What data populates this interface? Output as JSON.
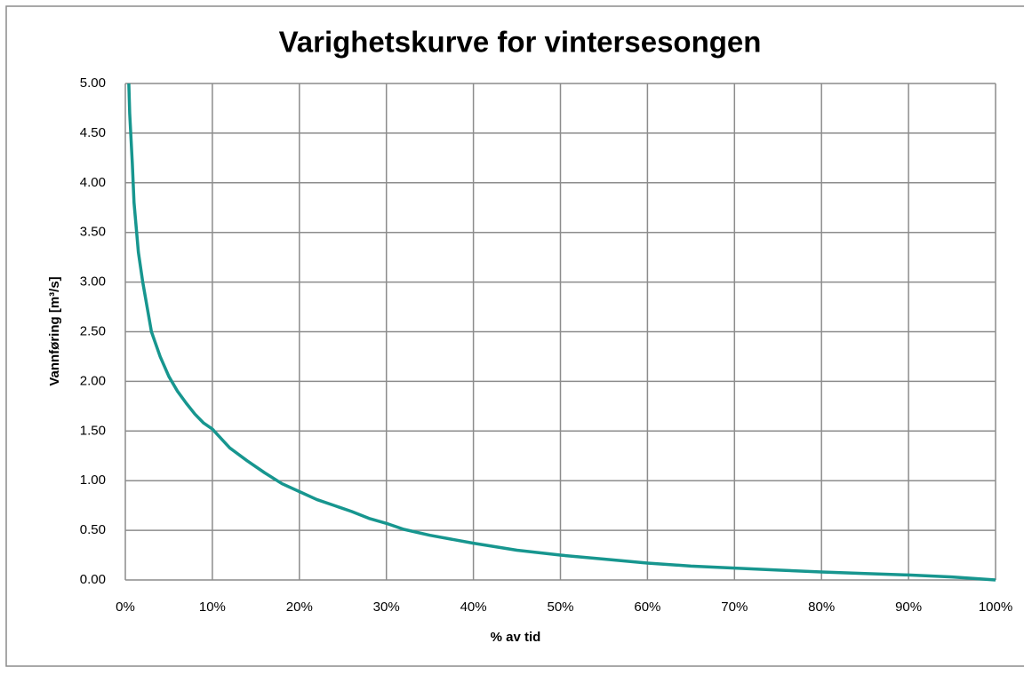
{
  "chart_data": {
    "type": "line",
    "title": "Varighetskurve for vintersesongen",
    "x_label": "% av tid",
    "y_label": "Vannføring [m³/s]",
    "x": [
      0.4,
      0.5,
      0.8,
      1,
      1.5,
      2,
      2.5,
      3,
      4,
      5,
      6,
      7,
      8,
      9,
      10,
      12,
      14,
      16,
      18,
      20,
      22,
      24,
      26,
      28,
      30,
      32,
      35,
      40,
      45,
      50,
      55,
      60,
      65,
      70,
      75,
      80,
      85,
      90,
      95,
      100
    ],
    "series": [
      {
        "name": "Vannføring",
        "color": "#17968f",
        "values": [
          5.0,
          4.7,
          4.2,
          3.8,
          3.3,
          3.0,
          2.75,
          2.5,
          2.25,
          2.05,
          1.9,
          1.78,
          1.67,
          1.58,
          1.52,
          1.33,
          1.2,
          1.08,
          0.97,
          0.89,
          0.81,
          0.75,
          0.69,
          0.62,
          0.57,
          0.51,
          0.45,
          0.37,
          0.3,
          0.25,
          0.21,
          0.17,
          0.14,
          0.12,
          0.1,
          0.08,
          0.065,
          0.05,
          0.03,
          0.0
        ]
      }
    ],
    "xlim": [
      0,
      100
    ],
    "xticks": [
      {
        "value": 0,
        "label": "0%"
      },
      {
        "value": 10,
        "label": "10%"
      },
      {
        "value": 20,
        "label": "20%"
      },
      {
        "value": 30,
        "label": "30%"
      },
      {
        "value": 40,
        "label": "40%"
      },
      {
        "value": 50,
        "label": "50%"
      },
      {
        "value": 60,
        "label": "60%"
      },
      {
        "value": 70,
        "label": "70%"
      },
      {
        "value": 80,
        "label": "80%"
      },
      {
        "value": 90,
        "label": "90%"
      },
      {
        "value": 100,
        "label": "100%"
      }
    ],
    "ylim": [
      0,
      5
    ],
    "yticks": [
      {
        "value": 0,
        "label": "0.00"
      },
      {
        "value": 0.5,
        "label": "0.50"
      },
      {
        "value": 1,
        "label": "1.00"
      },
      {
        "value": 1.5,
        "label": "1.50"
      },
      {
        "value": 2,
        "label": "2.00"
      },
      {
        "value": 2.5,
        "label": "2.50"
      },
      {
        "value": 3,
        "label": "3.00"
      },
      {
        "value": 3.5,
        "label": "3.50"
      },
      {
        "value": 4,
        "label": "4.00"
      },
      {
        "value": 4.5,
        "label": "4.50"
      },
      {
        "value": 5,
        "label": "5.00"
      }
    ],
    "grid": true
  }
}
